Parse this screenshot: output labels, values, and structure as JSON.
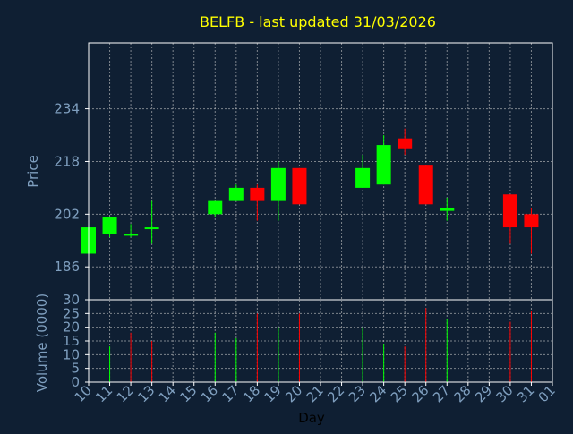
{
  "colors": {
    "background": "#0f1f33",
    "title": "#ffff00",
    "axis_text": "#7f9fbf",
    "grid": "#c8c8c8",
    "up": "#00ff00",
    "down": "#ff0000"
  },
  "chart_data": [
    {
      "type": "candlestick",
      "title": "BELFB - last updated 31/03/2026",
      "ylabel": "Price",
      "xlabel": "",
      "ylim": [
        176,
        254
      ],
      "yticks": [
        186,
        202,
        218,
        234
      ],
      "grid": true,
      "candles": [
        {
          "day": "10",
          "open": 190,
          "high": 198,
          "low": 190,
          "close": 198
        },
        {
          "day": "11",
          "open": 196,
          "high": 201,
          "low": 195,
          "close": 201
        },
        {
          "day": "12",
          "open": 196,
          "high": 199,
          "low": 195,
          "close": 196
        },
        {
          "day": "13",
          "open": 198,
          "high": 206,
          "low": 193,
          "close": 198
        },
        {
          "day": "16",
          "open": 202,
          "high": 206,
          "low": 201,
          "close": 206
        },
        {
          "day": "17",
          "open": 206,
          "high": 211,
          "low": 206,
          "close": 210
        },
        {
          "day": "18",
          "open": 210,
          "high": 211,
          "low": 200,
          "close": 206
        },
        {
          "day": "19",
          "open": 206,
          "high": 218,
          "low": 200,
          "close": 216
        },
        {
          "day": "20",
          "open": 216,
          "high": 216,
          "low": 205,
          "close": 205
        },
        {
          "day": "23",
          "open": 210,
          "high": 220,
          "low": 210,
          "close": 216
        },
        {
          "day": "24",
          "open": 211,
          "high": 226,
          "low": 211,
          "close": 223
        },
        {
          "day": "25",
          "open": 225,
          "high": 228,
          "low": 220,
          "close": 222
        },
        {
          "day": "26",
          "open": 217,
          "high": 217,
          "low": 205,
          "close": 205
        },
        {
          "day": "27",
          "open": 203,
          "high": 207,
          "low": 200,
          "close": 204
        },
        {
          "day": "30",
          "open": 208,
          "high": 208,
          "low": 193,
          "close": 198
        },
        {
          "day": "31",
          "open": 202,
          "high": 204,
          "low": 190,
          "close": 198
        }
      ]
    },
    {
      "type": "bar",
      "title": "",
      "xlabel": "Day",
      "ylabel": "Volume (0000)",
      "ylim": [
        0,
        30
      ],
      "yticks": [
        0,
        5,
        10,
        15,
        20,
        25,
        30
      ],
      "grid": true,
      "x_ticks": [
        "10",
        "11",
        "12",
        "13",
        "14",
        "15",
        "16",
        "17",
        "18",
        "19",
        "20",
        "21",
        "22",
        "23",
        "24",
        "25",
        "26",
        "27",
        "28",
        "29",
        "30",
        "31",
        "01"
      ],
      "bars": [
        {
          "day": "10",
          "value": 0,
          "direction": "up"
        },
        {
          "day": "11",
          "value": 13,
          "direction": "up"
        },
        {
          "day": "12",
          "value": 18,
          "direction": "down"
        },
        {
          "day": "13",
          "value": 15,
          "direction": "down"
        },
        {
          "day": "16",
          "value": 18,
          "direction": "up"
        },
        {
          "day": "17",
          "value": 16,
          "direction": "up"
        },
        {
          "day": "18",
          "value": 25,
          "direction": "down"
        },
        {
          "day": "19",
          "value": 20,
          "direction": "up"
        },
        {
          "day": "20",
          "value": 25,
          "direction": "down"
        },
        {
          "day": "23",
          "value": 20,
          "direction": "up"
        },
        {
          "day": "24",
          "value": 14,
          "direction": "up"
        },
        {
          "day": "25",
          "value": 13,
          "direction": "down"
        },
        {
          "day": "26",
          "value": 27,
          "direction": "down"
        },
        {
          "day": "27",
          "value": 23,
          "direction": "up"
        },
        {
          "day": "30",
          "value": 22,
          "direction": "down"
        },
        {
          "day": "31",
          "value": 26,
          "direction": "down"
        }
      ]
    }
  ]
}
